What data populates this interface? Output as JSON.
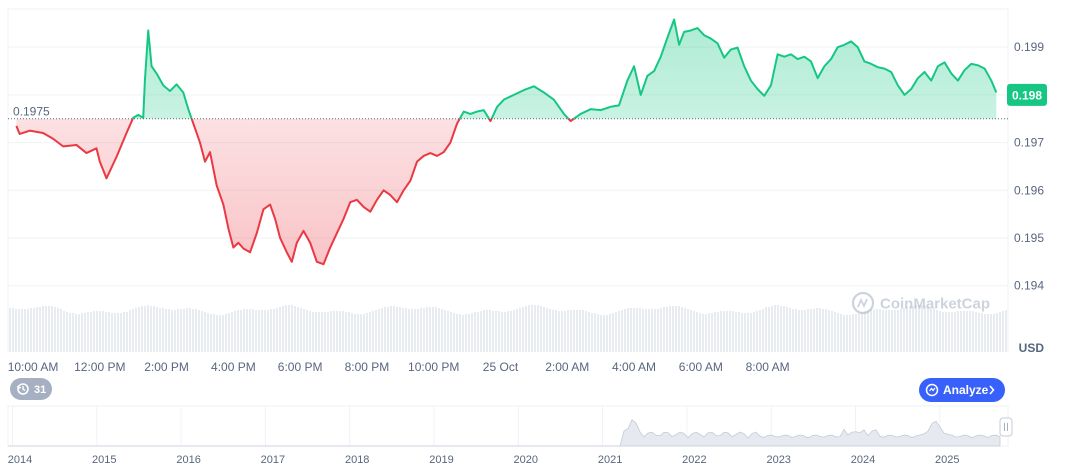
{
  "chart_data": {
    "type": "area",
    "unit_label": "USD",
    "baseline": 0.1975,
    "baseline_label": "0.1975",
    "current_price_label": "0.198",
    "y_ticks": [
      "0.199",
      "0.198",
      "0.197",
      "0.196",
      "0.195",
      "0.194"
    ],
    "ylim": [
      0.1937,
      0.1998
    ],
    "x_ticks": [
      "10:00 AM",
      "12:00 PM",
      "2:00 PM",
      "4:00 PM",
      "6:00 PM",
      "8:00 PM",
      "10:00 PM",
      "25 Oct",
      "2:00 AM",
      "4:00 AM",
      "6:00 AM",
      "8:00 AM"
    ],
    "x_hours": [
      0,
      24
    ],
    "series": [
      {
        "values": [
          {
            "t": 9.5,
            "y": 0.19735
          },
          {
            "t": 9.6,
            "y": 0.19718
          },
          {
            "t": 9.9,
            "y": 0.19725
          },
          {
            "t": 10.3,
            "y": 0.1972
          },
          {
            "t": 10.6,
            "y": 0.19708
          },
          {
            "t": 10.9,
            "y": 0.19692
          },
          {
            "t": 11.3,
            "y": 0.19695
          },
          {
            "t": 11.6,
            "y": 0.19678
          },
          {
            "t": 11.9,
            "y": 0.19688
          },
          {
            "t": 12.0,
            "y": 0.1966
          },
          {
            "t": 12.2,
            "y": 0.19625
          },
          {
            "t": 12.5,
            "y": 0.1967
          },
          {
            "t": 12.8,
            "y": 0.1972
          },
          {
            "t": 13.0,
            "y": 0.19752
          },
          {
            "t": 13.15,
            "y": 0.19758
          },
          {
            "t": 13.3,
            "y": 0.19752
          },
          {
            "t": 13.35,
            "y": 0.1983
          },
          {
            "t": 13.45,
            "y": 0.19935
          },
          {
            "t": 13.55,
            "y": 0.1986
          },
          {
            "t": 13.7,
            "y": 0.19845
          },
          {
            "t": 13.9,
            "y": 0.1982
          },
          {
            "t": 14.1,
            "y": 0.19808
          },
          {
            "t": 14.3,
            "y": 0.19822
          },
          {
            "t": 14.5,
            "y": 0.19805
          },
          {
            "t": 14.65,
            "y": 0.1977
          },
          {
            "t": 14.8,
            "y": 0.1974
          },
          {
            "t": 15.0,
            "y": 0.197
          },
          {
            "t": 15.15,
            "y": 0.1966
          },
          {
            "t": 15.3,
            "y": 0.1968
          },
          {
            "t": 15.5,
            "y": 0.1961
          },
          {
            "t": 15.7,
            "y": 0.1957
          },
          {
            "t": 15.85,
            "y": 0.1952
          },
          {
            "t": 16.0,
            "y": 0.1948
          },
          {
            "t": 16.15,
            "y": 0.1949
          },
          {
            "t": 16.3,
            "y": 0.19478
          },
          {
            "t": 16.5,
            "y": 0.1947
          },
          {
            "t": 16.7,
            "y": 0.1951
          },
          {
            "t": 16.9,
            "y": 0.1956
          },
          {
            "t": 17.1,
            "y": 0.1957
          },
          {
            "t": 17.25,
            "y": 0.1954
          },
          {
            "t": 17.4,
            "y": 0.195
          },
          {
            "t": 17.6,
            "y": 0.1947
          },
          {
            "t": 17.75,
            "y": 0.1945
          },
          {
            "t": 17.9,
            "y": 0.1949
          },
          {
            "t": 18.1,
            "y": 0.19515
          },
          {
            "t": 18.3,
            "y": 0.1949
          },
          {
            "t": 18.5,
            "y": 0.1945
          },
          {
            "t": 18.7,
            "y": 0.19445
          },
          {
            "t": 18.9,
            "y": 0.1948
          },
          {
            "t": 19.1,
            "y": 0.1951
          },
          {
            "t": 19.3,
            "y": 0.1954
          },
          {
            "t": 19.5,
            "y": 0.19575
          },
          {
            "t": 19.7,
            "y": 0.1958
          },
          {
            "t": 19.9,
            "y": 0.19565
          },
          {
            "t": 20.1,
            "y": 0.19555
          },
          {
            "t": 20.3,
            "y": 0.1958
          },
          {
            "t": 20.5,
            "y": 0.196
          },
          {
            "t": 20.7,
            "y": 0.1959
          },
          {
            "t": 20.9,
            "y": 0.19575
          },
          {
            "t": 21.1,
            "y": 0.196
          },
          {
            "t": 21.3,
            "y": 0.1962
          },
          {
            "t": 21.5,
            "y": 0.1966
          },
          {
            "t": 21.7,
            "y": 0.19672
          },
          {
            "t": 21.9,
            "y": 0.19678
          },
          {
            "t": 22.1,
            "y": 0.19672
          },
          {
            "t": 22.3,
            "y": 0.1968
          },
          {
            "t": 22.5,
            "y": 0.197
          },
          {
            "t": 22.7,
            "y": 0.1974
          },
          {
            "t": 22.9,
            "y": 0.19765
          },
          {
            "t": 23.1,
            "y": 0.1976
          },
          {
            "t": 23.3,
            "y": 0.19765
          },
          {
            "t": 23.5,
            "y": 0.19768
          },
          {
            "t": 23.7,
            "y": 0.19745
          },
          {
            "t": 23.9,
            "y": 0.19775
          },
          {
            "t": 24.1,
            "y": 0.1979
          },
          {
            "t": 24.4,
            "y": 0.198
          },
          {
            "t": 24.7,
            "y": 0.1981
          },
          {
            "t": 25.0,
            "y": 0.19818
          },
          {
            "t": 25.3,
            "y": 0.19805
          },
          {
            "t": 25.6,
            "y": 0.1979
          },
          {
            "t": 25.9,
            "y": 0.1976
          },
          {
            "t": 26.1,
            "y": 0.19745
          },
          {
            "t": 26.4,
            "y": 0.1976
          },
          {
            "t": 26.7,
            "y": 0.1977
          },
          {
            "t": 27.0,
            "y": 0.19768
          },
          {
            "t": 27.3,
            "y": 0.19775
          },
          {
            "t": 27.55,
            "y": 0.19778
          },
          {
            "t": 27.8,
            "y": 0.1983
          },
          {
            "t": 28.0,
            "y": 0.1986
          },
          {
            "t": 28.2,
            "y": 0.198
          },
          {
            "t": 28.4,
            "y": 0.1984
          },
          {
            "t": 28.6,
            "y": 0.1985
          },
          {
            "t": 28.8,
            "y": 0.1988
          },
          {
            "t": 29.0,
            "y": 0.1992
          },
          {
            "t": 29.2,
            "y": 0.19958
          },
          {
            "t": 29.35,
            "y": 0.19905
          },
          {
            "t": 29.5,
            "y": 0.19932
          },
          {
            "t": 29.7,
            "y": 0.19935
          },
          {
            "t": 29.9,
            "y": 0.1994
          },
          {
            "t": 30.1,
            "y": 0.19925
          },
          {
            "t": 30.3,
            "y": 0.19918
          },
          {
            "t": 30.5,
            "y": 0.19908
          },
          {
            "t": 30.7,
            "y": 0.19878
          },
          {
            "t": 30.9,
            "y": 0.19895
          },
          {
            "t": 31.1,
            "y": 0.19899
          },
          {
            "t": 31.3,
            "y": 0.1986
          },
          {
            "t": 31.5,
            "y": 0.1983
          },
          {
            "t": 31.7,
            "y": 0.19812
          },
          {
            "t": 31.9,
            "y": 0.19798
          },
          {
            "t": 32.1,
            "y": 0.1982
          },
          {
            "t": 32.3,
            "y": 0.19885
          },
          {
            "t": 32.5,
            "y": 0.1988
          },
          {
            "t": 32.7,
            "y": 0.19885
          },
          {
            "t": 32.9,
            "y": 0.19875
          },
          {
            "t": 33.1,
            "y": 0.1988
          },
          {
            "t": 33.3,
            "y": 0.1987
          },
          {
            "t": 33.5,
            "y": 0.19835
          },
          {
            "t": 33.7,
            "y": 0.1986
          },
          {
            "t": 33.9,
            "y": 0.19875
          },
          {
            "t": 34.1,
            "y": 0.199
          },
          {
            "t": 34.3,
            "y": 0.19905
          },
          {
            "t": 34.5,
            "y": 0.19912
          },
          {
            "t": 34.7,
            "y": 0.199
          },
          {
            "t": 34.9,
            "y": 0.1987
          },
          {
            "t": 35.1,
            "y": 0.19865
          },
          {
            "t": 35.3,
            "y": 0.19858
          },
          {
            "t": 35.5,
            "y": 0.19855
          },
          {
            "t": 35.7,
            "y": 0.19848
          },
          {
            "t": 35.9,
            "y": 0.1982
          },
          {
            "t": 36.1,
            "y": 0.198
          },
          {
            "t": 36.3,
            "y": 0.19812
          },
          {
            "t": 36.5,
            "y": 0.19835
          },
          {
            "t": 36.7,
            "y": 0.19848
          },
          {
            "t": 36.9,
            "y": 0.1983
          },
          {
            "t": 37.1,
            "y": 0.1986
          },
          {
            "t": 37.3,
            "y": 0.19868
          },
          {
            "t": 37.5,
            "y": 0.19845
          },
          {
            "t": 37.7,
            "y": 0.1983
          },
          {
            "t": 37.9,
            "y": 0.19852
          },
          {
            "t": 38.1,
            "y": 0.19865
          },
          {
            "t": 38.3,
            "y": 0.19862
          },
          {
            "t": 38.5,
            "y": 0.19855
          },
          {
            "t": 38.7,
            "y": 0.1983
          },
          {
            "t": 38.85,
            "y": 0.19805
          }
        ]
      }
    ],
    "overview": {
      "type": "area",
      "x_ticks": [
        "2014",
        "2015",
        "2016",
        "2017",
        "2018",
        "2019",
        "2020",
        "2021",
        "2022",
        "2023",
        "2024",
        "2025"
      ]
    }
  },
  "history_badge": {
    "count": "31"
  },
  "analyze_button": {
    "label": "Analyze"
  },
  "watermark": {
    "text": "CoinMarketCap"
  },
  "colors": {
    "up": "#16c784",
    "down": "#ea3943",
    "grid": "#eff2f5",
    "axis_text": "#58667e",
    "analyze_bg": "#3861fb",
    "badge_bg": "#a6b0c3"
  }
}
